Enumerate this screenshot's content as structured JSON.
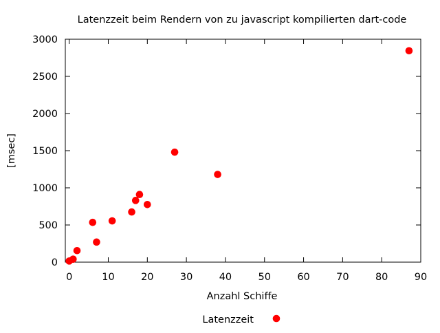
{
  "chart_data": {
    "type": "scatter",
    "title": "Latenzzeit beim Rendern von zu javascript kompilierten dart-code",
    "xlabel": "Anzahl Schiffe",
    "ylabel": "[msec]",
    "xlim": [
      -1,
      90
    ],
    "ylim": [
      0,
      3000
    ],
    "xticks": [
      0,
      10,
      20,
      30,
      40,
      50,
      60,
      70,
      80,
      90
    ],
    "yticks": [
      0,
      500,
      1000,
      1500,
      2000,
      2500,
      3000
    ],
    "grid": false,
    "legend_position": "bottom-center",
    "series": [
      {
        "name": "Latenzzeit",
        "color": "#ff0000",
        "marker": "circle",
        "points": [
          {
            "x": 0,
            "y": 15
          },
          {
            "x": 1,
            "y": 40
          },
          {
            "x": 2,
            "y": 155
          },
          {
            "x": 6,
            "y": 535
          },
          {
            "x": 7,
            "y": 270
          },
          {
            "x": 11,
            "y": 555
          },
          {
            "x": 16,
            "y": 675
          },
          {
            "x": 17,
            "y": 830
          },
          {
            "x": 18,
            "y": 910
          },
          {
            "x": 20,
            "y": 775
          },
          {
            "x": 27,
            "y": 1480
          },
          {
            "x": 38,
            "y": 1180
          },
          {
            "x": 87,
            "y": 2845
          }
        ]
      }
    ]
  }
}
